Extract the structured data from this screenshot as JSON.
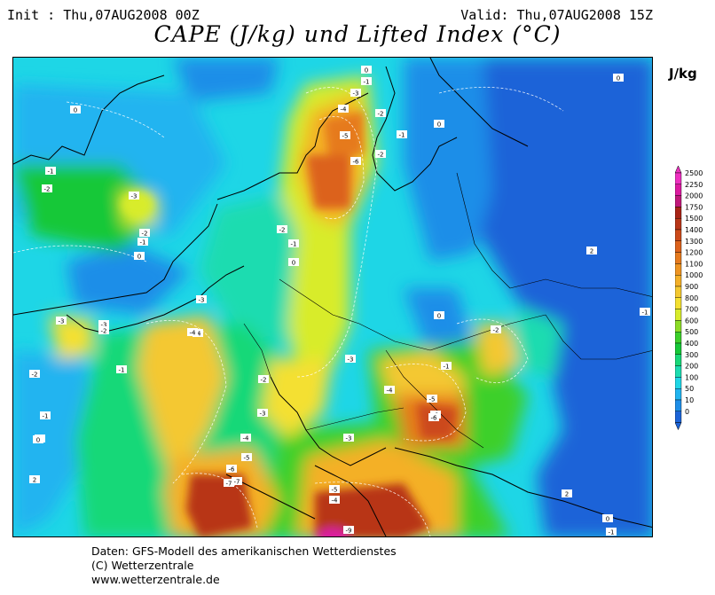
{
  "header": {
    "init": "Init : Thu,07AUG2008 00Z",
    "valid": "Valid: Thu,07AUG2008 15Z",
    "title": "CAPE (J/kg) und Lifted Index (°C)"
  },
  "legend": {
    "unit": "J/kg",
    "levels": [
      "0",
      "10",
      "50",
      "100",
      "200",
      "300",
      "400",
      "500",
      "600",
      "700",
      "800",
      "900",
      "1000",
      "1100",
      "1200",
      "1300",
      "1400",
      "1500",
      "1750",
      "2000",
      "2250",
      "2500"
    ],
    "colors": [
      "#1c64d8",
      "#1e8ee8",
      "#20b4f0",
      "#1ed6e6",
      "#1cdcb0",
      "#18d878",
      "#16c838",
      "#3cd02a",
      "#8cdc26",
      "#d8ec2a",
      "#f4e030",
      "#f4c830",
      "#f4b028",
      "#ee9422",
      "#e67a1e",
      "#dc621c",
      "#cc4a1a",
      "#b83618",
      "#a82416",
      "#c0187a",
      "#dc1aa0",
      "#ee30c0"
    ]
  },
  "map": {
    "lifted_index_labels": [
      "0",
      "-1",
      "-2",
      "-3",
      "-4",
      "-5",
      "-6",
      "-7",
      "-8",
      "-9",
      "0",
      "-1",
      "-2",
      "-3",
      "-1",
      "-2",
      "0",
      "2",
      "0",
      "-1",
      "-2",
      "-3",
      "-4",
      "-5",
      "-6",
      "-7",
      "-3",
      "-4",
      "-2",
      "-1",
      "0",
      "0",
      "-1",
      "-2",
      "-5",
      "-6",
      "-4",
      "-3",
      "-2",
      "0",
      "2",
      "-1",
      "0",
      "-1",
      "2",
      "0",
      "-1",
      "-2",
      "-3",
      "-4",
      "-3",
      "-2",
      "-1",
      "0",
      "-5",
      "-4",
      "-3"
    ]
  },
  "footer": {
    "line1": "Daten: GFS-Modell des amerikanischen Wetterdienstes",
    "line2": "(C) Wetterzentrale",
    "line3": "www.wetterzentrale.de"
  }
}
